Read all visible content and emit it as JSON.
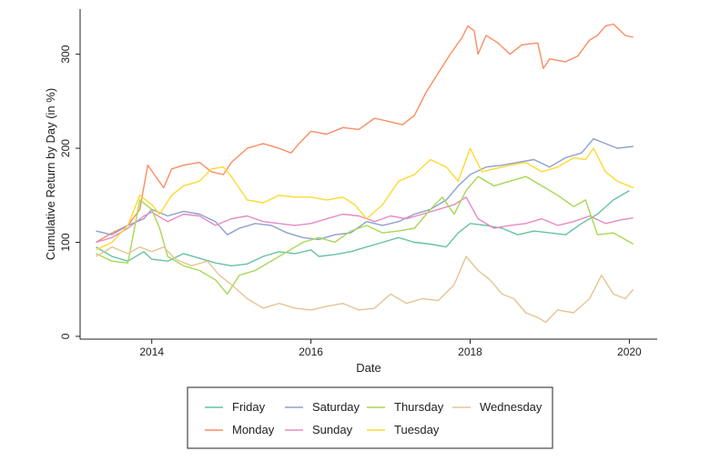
{
  "chart_data": {
    "type": "line",
    "xlabel": "Date",
    "ylabel": "Cumulative Return by Day (in %)",
    "xlim": [
      2013.1,
      2020.35
    ],
    "ylim": [
      -3,
      348
    ],
    "xticks": [
      2014,
      2016,
      2018,
      2020
    ],
    "xtick_labels": [
      "2014",
      "2016",
      "2018",
      "2020"
    ],
    "yticks": [
      0,
      100,
      200,
      300
    ],
    "ytick_labels": [
      "0",
      "100",
      "200",
      "300"
    ],
    "grid": false,
    "legend_position": "bottom",
    "series": [
      {
        "name": "Friday",
        "color": "#66c2a5",
        "points": [
          [
            2013.3,
            95
          ],
          [
            2013.5,
            85
          ],
          [
            2013.7,
            80
          ],
          [
            2013.9,
            90
          ],
          [
            2014.0,
            82
          ],
          [
            2014.2,
            80
          ],
          [
            2014.4,
            88
          ],
          [
            2014.6,
            83
          ],
          [
            2014.8,
            78
          ],
          [
            2015.0,
            75
          ],
          [
            2015.2,
            77
          ],
          [
            2015.4,
            85
          ],
          [
            2015.6,
            90
          ],
          [
            2015.8,
            88
          ],
          [
            2016.0,
            92
          ],
          [
            2016.1,
            85
          ],
          [
            2016.3,
            87
          ],
          [
            2016.5,
            90
          ],
          [
            2016.7,
            95
          ],
          [
            2016.9,
            100
          ],
          [
            2017.1,
            105
          ],
          [
            2017.3,
            100
          ],
          [
            2017.5,
            98
          ],
          [
            2017.7,
            95
          ],
          [
            2017.85,
            110
          ],
          [
            2018.0,
            120
          ],
          [
            2018.2,
            118
          ],
          [
            2018.4,
            115
          ],
          [
            2018.6,
            108
          ],
          [
            2018.8,
            112
          ],
          [
            2019.0,
            110
          ],
          [
            2019.2,
            108
          ],
          [
            2019.4,
            120
          ],
          [
            2019.6,
            130
          ],
          [
            2019.8,
            145
          ],
          [
            2020.0,
            155
          ]
        ]
      },
      {
        "name": "Monday",
        "color": "#fc8d62",
        "points": [
          [
            2013.3,
            100
          ],
          [
            2013.5,
            110
          ],
          [
            2013.7,
            118
          ],
          [
            2013.85,
            135
          ],
          [
            2013.95,
            182
          ],
          [
            2014.05,
            170
          ],
          [
            2014.15,
            158
          ],
          [
            2014.25,
            178
          ],
          [
            2014.4,
            182
          ],
          [
            2014.6,
            185
          ],
          [
            2014.75,
            175
          ],
          [
            2014.9,
            172
          ],
          [
            2015.0,
            185
          ],
          [
            2015.2,
            200
          ],
          [
            2015.4,
            205
          ],
          [
            2015.6,
            200
          ],
          [
            2015.75,
            195
          ],
          [
            2015.85,
            205
          ],
          [
            2016.0,
            218
          ],
          [
            2016.2,
            215
          ],
          [
            2016.4,
            222
          ],
          [
            2016.6,
            220
          ],
          [
            2016.8,
            232
          ],
          [
            2017.0,
            228
          ],
          [
            2017.15,
            225
          ],
          [
            2017.3,
            235
          ],
          [
            2017.45,
            260
          ],
          [
            2017.6,
            280
          ],
          [
            2017.75,
            300
          ],
          [
            2017.9,
            318
          ],
          [
            2017.97,
            330
          ],
          [
            2018.05,
            325
          ],
          [
            2018.1,
            300
          ],
          [
            2018.2,
            320
          ],
          [
            2018.35,
            312
          ],
          [
            2018.5,
            300
          ],
          [
            2018.65,
            310
          ],
          [
            2018.85,
            312
          ],
          [
            2018.92,
            285
          ],
          [
            2019.0,
            295
          ],
          [
            2019.2,
            292
          ],
          [
            2019.35,
            298
          ],
          [
            2019.5,
            315
          ],
          [
            2019.6,
            320
          ],
          [
            2019.7,
            330
          ],
          [
            2019.8,
            332
          ],
          [
            2019.95,
            320
          ],
          [
            2020.05,
            318
          ]
        ]
      },
      {
        "name": "Saturday",
        "color": "#8da0cb",
        "points": [
          [
            2013.3,
            112
          ],
          [
            2013.5,
            108
          ],
          [
            2013.7,
            118
          ],
          [
            2013.9,
            125
          ],
          [
            2014.0,
            135
          ],
          [
            2014.2,
            128
          ],
          [
            2014.4,
            133
          ],
          [
            2014.6,
            130
          ],
          [
            2014.8,
            122
          ],
          [
            2014.95,
            108
          ],
          [
            2015.1,
            115
          ],
          [
            2015.3,
            120
          ],
          [
            2015.5,
            118
          ],
          [
            2015.7,
            110
          ],
          [
            2015.9,
            105
          ],
          [
            2016.1,
            103
          ],
          [
            2016.3,
            108
          ],
          [
            2016.5,
            110
          ],
          [
            2016.7,
            122
          ],
          [
            2016.9,
            118
          ],
          [
            2017.1,
            122
          ],
          [
            2017.3,
            130
          ],
          [
            2017.5,
            135
          ],
          [
            2017.7,
            145
          ],
          [
            2017.85,
            160
          ],
          [
            2018.0,
            172
          ],
          [
            2018.2,
            180
          ],
          [
            2018.4,
            182
          ],
          [
            2018.6,
            185
          ],
          [
            2018.8,
            188
          ],
          [
            2019.0,
            180
          ],
          [
            2019.2,
            190
          ],
          [
            2019.4,
            195
          ],
          [
            2019.55,
            210
          ],
          [
            2019.7,
            205
          ],
          [
            2019.85,
            200
          ],
          [
            2020.05,
            202
          ]
        ]
      },
      {
        "name": "Sunday",
        "color": "#e78ac3",
        "points": [
          [
            2013.3,
            100
          ],
          [
            2013.5,
            105
          ],
          [
            2013.7,
            115
          ],
          [
            2013.9,
            128
          ],
          [
            2014.0,
            132
          ],
          [
            2014.2,
            122
          ],
          [
            2014.4,
            130
          ],
          [
            2014.6,
            128
          ],
          [
            2014.8,
            118
          ],
          [
            2015.0,
            125
          ],
          [
            2015.2,
            128
          ],
          [
            2015.4,
            122
          ],
          [
            2015.6,
            120
          ],
          [
            2015.8,
            118
          ],
          [
            2016.0,
            120
          ],
          [
            2016.2,
            125
          ],
          [
            2016.4,
            130
          ],
          [
            2016.6,
            128
          ],
          [
            2016.8,
            122
          ],
          [
            2017.0,
            128
          ],
          [
            2017.2,
            125
          ],
          [
            2017.4,
            130
          ],
          [
            2017.6,
            135
          ],
          [
            2017.8,
            140
          ],
          [
            2017.95,
            148
          ],
          [
            2018.1,
            125
          ],
          [
            2018.3,
            115
          ],
          [
            2018.5,
            118
          ],
          [
            2018.7,
            120
          ],
          [
            2018.9,
            125
          ],
          [
            2019.1,
            118
          ],
          [
            2019.3,
            122
          ],
          [
            2019.5,
            128
          ],
          [
            2019.7,
            120
          ],
          [
            2019.9,
            124
          ],
          [
            2020.05,
            126
          ]
        ]
      },
      {
        "name": "Thursday",
        "color": "#a6d854",
        "points": [
          [
            2013.3,
            88
          ],
          [
            2013.5,
            80
          ],
          [
            2013.7,
            78
          ],
          [
            2013.85,
            145
          ],
          [
            2014.0,
            135
          ],
          [
            2014.1,
            115
          ],
          [
            2014.2,
            85
          ],
          [
            2014.4,
            75
          ],
          [
            2014.6,
            70
          ],
          [
            2014.8,
            60
          ],
          [
            2014.95,
            45
          ],
          [
            2015.1,
            65
          ],
          [
            2015.3,
            70
          ],
          [
            2015.5,
            80
          ],
          [
            2015.7,
            90
          ],
          [
            2015.9,
            100
          ],
          [
            2016.1,
            105
          ],
          [
            2016.3,
            100
          ],
          [
            2016.5,
            112
          ],
          [
            2016.7,
            118
          ],
          [
            2016.9,
            110
          ],
          [
            2017.1,
            112
          ],
          [
            2017.3,
            115
          ],
          [
            2017.5,
            135
          ],
          [
            2017.65,
            148
          ],
          [
            2017.8,
            130
          ],
          [
            2017.95,
            155
          ],
          [
            2018.1,
            170
          ],
          [
            2018.3,
            160
          ],
          [
            2018.5,
            165
          ],
          [
            2018.7,
            170
          ],
          [
            2018.9,
            160
          ],
          [
            2019.1,
            150
          ],
          [
            2019.3,
            138
          ],
          [
            2019.45,
            145
          ],
          [
            2019.6,
            108
          ],
          [
            2019.8,
            110
          ],
          [
            2020.05,
            98
          ]
        ]
      },
      {
        "name": "Tuesday",
        "color": "#ffd92f",
        "points": [
          [
            2013.3,
            92
          ],
          [
            2013.5,
            100
          ],
          [
            2013.7,
            118
          ],
          [
            2013.85,
            150
          ],
          [
            2014.0,
            140
          ],
          [
            2014.1,
            130
          ],
          [
            2014.25,
            150
          ],
          [
            2014.4,
            160
          ],
          [
            2014.6,
            165
          ],
          [
            2014.75,
            178
          ],
          [
            2014.9,
            180
          ],
          [
            2015.0,
            170
          ],
          [
            2015.2,
            145
          ],
          [
            2015.4,
            142
          ],
          [
            2015.6,
            150
          ],
          [
            2015.8,
            148
          ],
          [
            2016.0,
            148
          ],
          [
            2016.2,
            145
          ],
          [
            2016.4,
            148
          ],
          [
            2016.55,
            140
          ],
          [
            2016.7,
            125
          ],
          [
            2016.9,
            140
          ],
          [
            2017.1,
            165
          ],
          [
            2017.3,
            172
          ],
          [
            2017.5,
            188
          ],
          [
            2017.7,
            180
          ],
          [
            2017.85,
            165
          ],
          [
            2018.0,
            200
          ],
          [
            2018.15,
            175
          ],
          [
            2018.3,
            178
          ],
          [
            2018.5,
            182
          ],
          [
            2018.7,
            185
          ],
          [
            2018.9,
            175
          ],
          [
            2019.1,
            180
          ],
          [
            2019.3,
            190
          ],
          [
            2019.45,
            188
          ],
          [
            2019.55,
            200
          ],
          [
            2019.7,
            175
          ],
          [
            2019.85,
            165
          ],
          [
            2020.05,
            158
          ]
        ]
      },
      {
        "name": "Wednesday",
        "color": "#e5c494",
        "points": [
          [
            2013.3,
            85
          ],
          [
            2013.5,
            95
          ],
          [
            2013.7,
            88
          ],
          [
            2013.85,
            95
          ],
          [
            2014.0,
            90
          ],
          [
            2014.15,
            95
          ],
          [
            2014.3,
            82
          ],
          [
            2014.5,
            75
          ],
          [
            2014.7,
            80
          ],
          [
            2014.85,
            65
          ],
          [
            2015.0,
            55
          ],
          [
            2015.2,
            40
          ],
          [
            2015.4,
            30
          ],
          [
            2015.6,
            35
          ],
          [
            2015.8,
            30
          ],
          [
            2016.0,
            28
          ],
          [
            2016.2,
            32
          ],
          [
            2016.4,
            35
          ],
          [
            2016.6,
            28
          ],
          [
            2016.8,
            30
          ],
          [
            2017.0,
            45
          ],
          [
            2017.2,
            35
          ],
          [
            2017.4,
            40
          ],
          [
            2017.6,
            38
          ],
          [
            2017.8,
            55
          ],
          [
            2017.95,
            85
          ],
          [
            2018.1,
            70
          ],
          [
            2018.25,
            60
          ],
          [
            2018.4,
            45
          ],
          [
            2018.55,
            40
          ],
          [
            2018.7,
            25
          ],
          [
            2018.85,
            20
          ],
          [
            2018.95,
            15
          ],
          [
            2019.1,
            28
          ],
          [
            2019.3,
            25
          ],
          [
            2019.5,
            40
          ],
          [
            2019.65,
            65
          ],
          [
            2019.8,
            45
          ],
          [
            2019.95,
            40
          ],
          [
            2020.05,
            50
          ]
        ]
      }
    ],
    "legend": {
      "rows": [
        [
          "Friday",
          "Saturday",
          "Thursday",
          "Wednesday"
        ],
        [
          "Monday",
          "Sunday",
          "Tuesday"
        ]
      ]
    }
  }
}
